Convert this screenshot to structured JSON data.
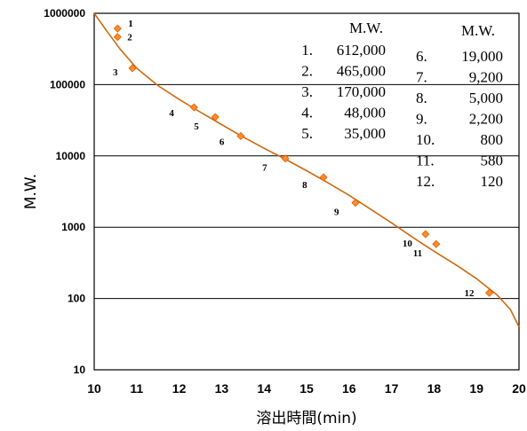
{
  "chart_data": {
    "type": "scatter",
    "xlabel": "溶出時間(min)",
    "ylabel": "M.W.",
    "xlim": [
      10,
      20
    ],
    "ylim": [
      10,
      1000000
    ],
    "yscale": "log",
    "grid": "horizontal",
    "x_ticks": [
      "10",
      "11",
      "12",
      "13",
      "14",
      "15",
      "16",
      "17",
      "18",
      "19",
      "20"
    ],
    "y_ticks": [
      "10",
      "100",
      "1000",
      "10000",
      "100000",
      "1000000"
    ],
    "marker_color": "#ff8c2a",
    "marker_edge_color": "#e06000",
    "curve_color": "#cc6a10",
    "points": [
      {
        "label": "1",
        "x": 10.55,
        "y": 612000
      },
      {
        "label": "2",
        "x": 10.55,
        "y": 465000
      },
      {
        "label": "3",
        "x": 10.9,
        "y": 170000
      },
      {
        "label": "4",
        "x": 12.35,
        "y": 48000
      },
      {
        "label": "5",
        "x": 12.85,
        "y": 35000
      },
      {
        "label": "6",
        "x": 13.45,
        "y": 19000
      },
      {
        "label": "7",
        "x": 14.5,
        "y": 9200
      },
      {
        "label": "8",
        "x": 15.4,
        "y": 5000
      },
      {
        "label": "9",
        "x": 16.15,
        "y": 2200
      },
      {
        "label": "10",
        "x": 17.8,
        "y": 800
      },
      {
        "label": "11",
        "x": 18.05,
        "y": 580
      },
      {
        "label": "12",
        "x": 19.3,
        "y": 120
      }
    ],
    "fit_curve": {
      "x": [
        10.0,
        10.3,
        10.6,
        11.0,
        11.5,
        12.0,
        12.5,
        13.0,
        13.5,
        14.0,
        14.5,
        15.0,
        15.5,
        16.0,
        16.5,
        17.0,
        17.5,
        18.0,
        18.5,
        19.0,
        19.5,
        19.8,
        20.0
      ],
      "y": [
        1000000,
        560000,
        320000,
        170000,
        97000,
        62000,
        41000,
        27500,
        18500,
        12800,
        9000,
        6200,
        4200,
        2800,
        1800,
        1150,
        720,
        460,
        300,
        190,
        110,
        70,
        40
      ]
    },
    "legend": {
      "left": {
        "header": "M.W.",
        "items": [
          {
            "num": "1.",
            "value": "612,000"
          },
          {
            "num": "2.",
            "value": "465,000"
          },
          {
            "num": "3.",
            "value": "170,000"
          },
          {
            "num": "4.",
            "value": "48,000"
          },
          {
            "num": "5.",
            "value": "35,000"
          }
        ]
      },
      "right": {
        "header": "M.W.",
        "items": [
          {
            "num": "6.",
            "value": "19,000"
          },
          {
            "num": "7.",
            "value": "9,200"
          },
          {
            "num": "8.",
            "value": "5,000"
          },
          {
            "num": "9.",
            "value": "2,200"
          },
          {
            "num": "10.",
            "value": "800"
          },
          {
            "num": "11.",
            "value": "580"
          },
          {
            "num": "12.",
            "value": "120"
          }
        ]
      }
    }
  }
}
